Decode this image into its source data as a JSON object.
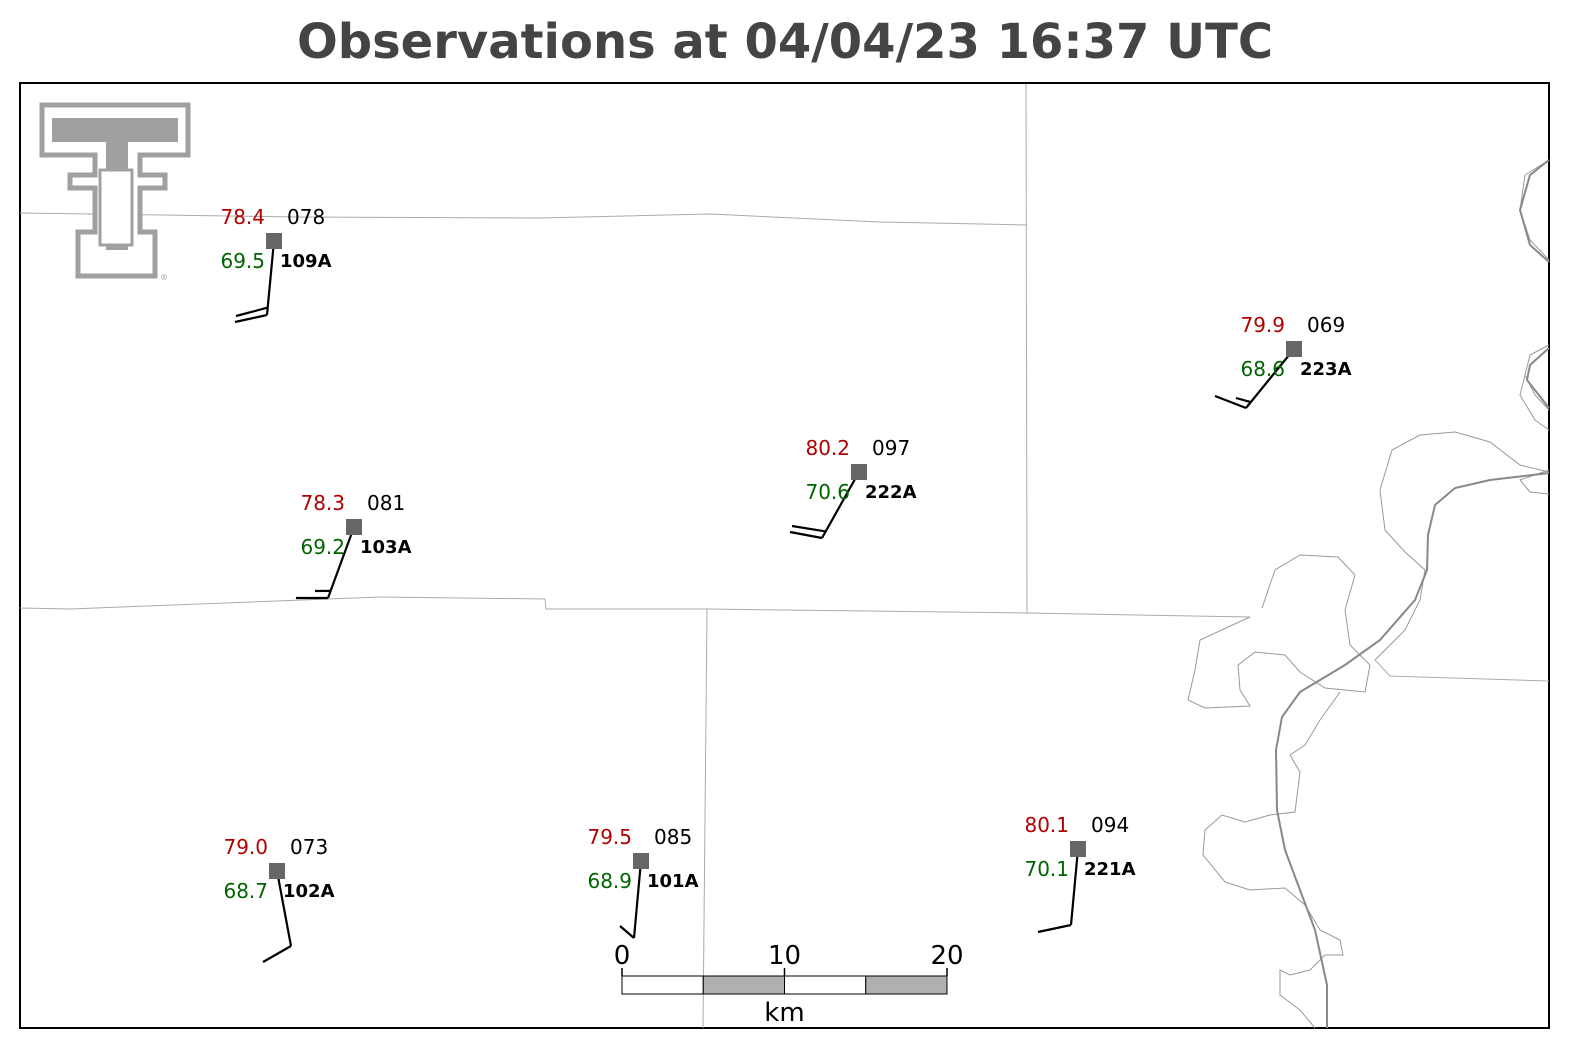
{
  "title": "Observations at 04/04/23 16:37 UTC",
  "stations": [
    {
      "id": "109A",
      "temperature": "78.4",
      "dewpoint": "69.5",
      "pressure": "078"
    },
    {
      "id": "103A",
      "temperature": "78.3",
      "dewpoint": "69.2",
      "pressure": "081"
    },
    {
      "id": "222A",
      "temperature": "80.2",
      "dewpoint": "70.6",
      "pressure": "097"
    },
    {
      "id": "223A",
      "temperature": "79.9",
      "dewpoint": "68.6",
      "pressure": "069"
    },
    {
      "id": "102A",
      "temperature": "79.0",
      "dewpoint": "68.7",
      "pressure": "073"
    },
    {
      "id": "101A",
      "temperature": "79.5",
      "dewpoint": "68.9",
      "pressure": "085"
    },
    {
      "id": "221A",
      "temperature": "80.1",
      "dewpoint": "70.1",
      "pressure": "094"
    }
  ],
  "scale_bar": {
    "ticks": [
      0,
      10,
      20
    ],
    "unit": "km"
  }
}
